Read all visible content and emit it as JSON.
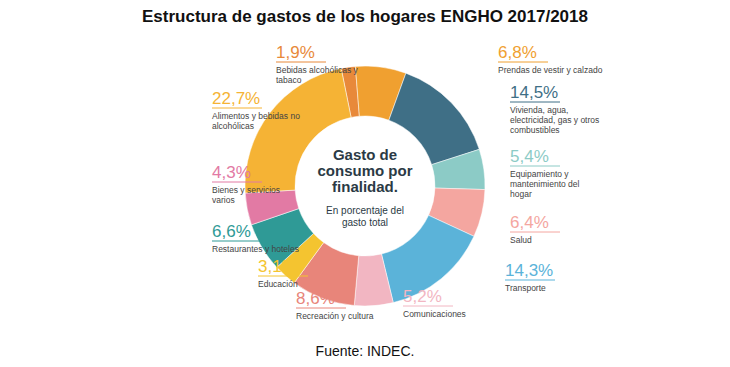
{
  "chart_data": {
    "type": "donut",
    "title": "Estructura de gastos de los hogares ENGHO 2017/2018",
    "center_title": "Gasto de consumo por finalidad.",
    "center_subtitle": "En porcentaje del gasto total",
    "source": "Fuente: INDEC.",
    "categories": [
      "Bebidas alcohólicas y tabaco",
      "Prendas de vestir y calzado",
      "Vivienda, agua, electricidad, gas y otros combustibles",
      "Equipamiento y mantenimiento del hogar",
      "Salud",
      "Transporte",
      "Comunicaciones",
      "Recreación y cultura",
      "Educación",
      "Restaurantes y hoteles",
      "Bienes y servicios varios",
      "Alimentos y bebidas no alcohólicas"
    ],
    "values": [
      1.9,
      6.8,
      14.5,
      5.4,
      6.4,
      14.3,
      5.2,
      8.6,
      3.1,
      6.6,
      4.3,
      22.7
    ],
    "value_labels": [
      "1,9%",
      "6,8%",
      "14,5%",
      "5,4%",
      "6,4%",
      "14,3%",
      "5,2%",
      "8,6%",
      "3,1%",
      "6,6%",
      "4,3%",
      "22,7%"
    ],
    "colors": [
      "#e8893a",
      "#f0a030",
      "#3f6f86",
      "#8ccbc6",
      "#f4a6a0",
      "#5bb3d9",
      "#f2b6c2",
      "#e8857a",
      "#f4c430",
      "#2f9a96",
      "#e27aa4",
      "#f5b335"
    ],
    "data_labels": true
  }
}
